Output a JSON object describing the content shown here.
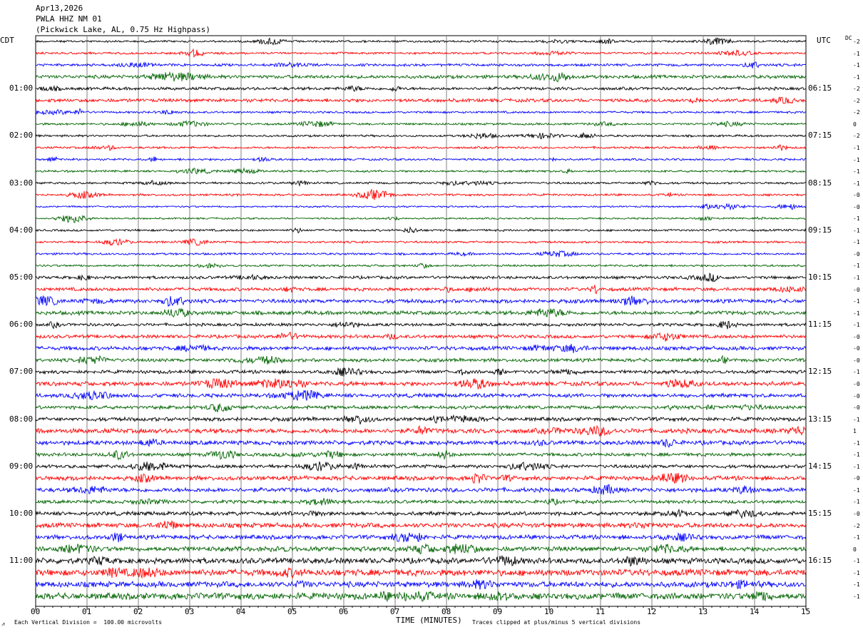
{
  "header": {
    "date": "Apr13,2026",
    "station": "PWLA HHZ NM 01",
    "location": "(Pickwick Lake, AL, 0.75 Hz Highpass)"
  },
  "left_tz": "CDT",
  "right_tz": "UTC",
  "dc_label": "DC",
  "footer": {
    "scale_note": "Each Vertical Division =  100.00 microvolts",
    "xlabel": "TIME (MINUTES)",
    "clip_note": "Traces clipped at plus/minus 5 vertical divisions",
    "corner_mark": "⩘"
  },
  "colors": {
    "black": "#000000",
    "red": "#ff0000",
    "blue": "#0000ff",
    "green": "#006400",
    "grid": "#808080"
  },
  "chart_data": {
    "type": "line",
    "title": "PWLA HHZ NM 01",
    "xlabel": "TIME (MINUTES)",
    "x_ticks": [
      "00",
      "01",
      "02",
      "03",
      "04",
      "05",
      "06",
      "07",
      "08",
      "09",
      "10",
      "11",
      "12",
      "13",
      "14",
      "15"
    ],
    "xlim": [
      0,
      15
    ],
    "trace_count": 48,
    "trace_minutes": 15,
    "color_cycle": [
      "black",
      "red",
      "blue",
      "green"
    ],
    "left_time_labels": [
      "01:00",
      "02:00",
      "03:00",
      "04:00",
      "05:00",
      "06:00",
      "07:00",
      "08:00",
      "09:00",
      "10:00",
      "11:00"
    ],
    "right_time_labels": [
      "06:15",
      "07:15",
      "08:15",
      "09:15",
      "10:15",
      "11:15",
      "12:15",
      "13:15",
      "14:15",
      "15:15",
      "16:15"
    ],
    "dc_offsets": [
      "-2",
      "-1",
      "-1",
      "-1",
      "-2",
      "-2",
      "-2",
      "0",
      "-2",
      "-1",
      "-1",
      "-1",
      "-1",
      "-0",
      "-0",
      "-1",
      "-1",
      "-1",
      "-0",
      "-1",
      "-1",
      "-0",
      "-1",
      "-1",
      "-1",
      "-0",
      "-0",
      "-0",
      "-1",
      "-0",
      "-0",
      "-0",
      "-1",
      "1",
      "-1",
      "-1",
      "-1",
      "-0",
      "-1",
      "-1",
      "-0",
      "-2",
      "-1",
      "0",
      "-1",
      "-1",
      "-1",
      "-1"
    ],
    "amplitude_envelope": [
      1.0,
      1.0,
      1.2,
      1.6,
      1.4,
      1.6,
      1.0,
      1.0,
      1.0,
      1.0,
      1.0,
      1.0,
      1.0,
      1.0,
      0.8,
      0.8,
      1.0,
      1.0,
      1.0,
      1.0,
      1.4,
      1.6,
      1.8,
      1.8,
      1.4,
      1.6,
      1.8,
      1.6,
      1.6,
      2.0,
      1.8,
      1.6,
      1.8,
      2.2,
      2.0,
      1.6,
      1.6,
      2.0,
      2.0,
      1.6,
      1.8,
      2.2,
      2.0,
      2.2,
      2.6,
      3.0,
      2.6,
      3.0
    ]
  }
}
